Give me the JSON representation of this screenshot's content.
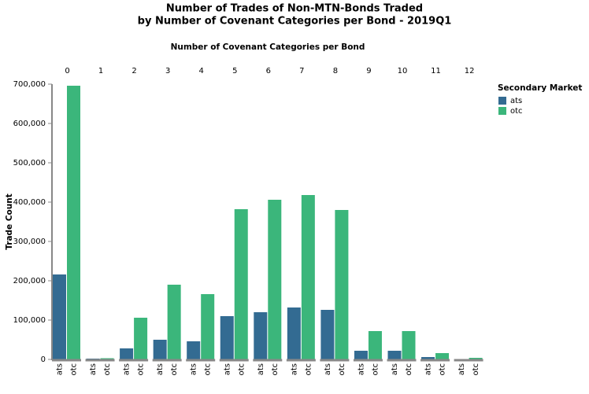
{
  "chart_data": {
    "type": "bar",
    "title": [
      "Number of Trades of Non-MTN-Bonds Traded",
      "by Number of Covenant Categories per Bond - 2019Q1"
    ],
    "x_label": "Number of Covenant Categories per Bond",
    "y_label": "Trade Count",
    "legend_title": "Secondary Market",
    "legend_position": "right",
    "categories": [
      "0",
      "1",
      "2",
      "3",
      "4",
      "5",
      "6",
      "7",
      "8",
      "9",
      "10",
      "11",
      "12"
    ],
    "series": [
      {
        "name": "ats",
        "color": "#336b92",
        "values": [
          216000,
          2000,
          28000,
          50000,
          46000,
          110000,
          120000,
          132000,
          126000,
          22000,
          22000,
          6000,
          1000
        ]
      },
      {
        "name": "otc",
        "color": "#3bb67b",
        "values": [
          696000,
          3000,
          106000,
          190000,
          166000,
          382000,
          406000,
          418000,
          380000,
          72000,
          72000,
          16000,
          4000
        ]
      }
    ],
    "ylim": [
      0,
      700000
    ],
    "yticks": [
      0,
      {
        "value": 100000,
        "label": "100,000"
      },
      {
        "value": 200000,
        "label": "200,000"
      },
      {
        "value": 300000,
        "label": "300,000"
      },
      {
        "value": 400000,
        "label": "400,000"
      },
      {
        "value": 500000,
        "label": "500,000"
      },
      {
        "value": 600000,
        "label": "600,000"
      },
      {
        "value": 700000,
        "label": "700,000"
      }
    ],
    "grid": false
  }
}
